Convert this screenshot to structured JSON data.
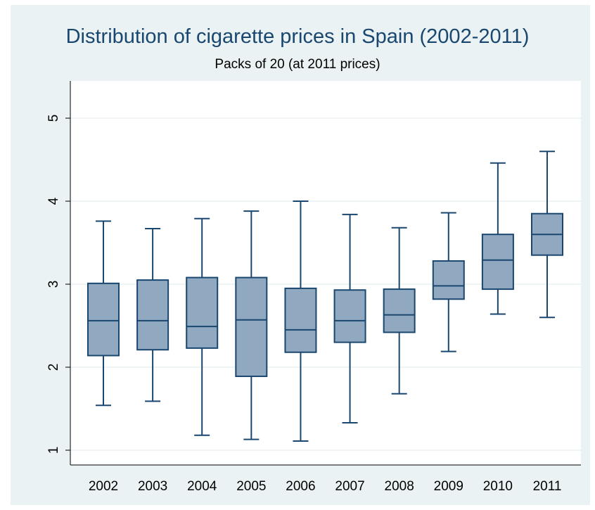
{
  "chart_data": {
    "type": "box",
    "title": "Distribution of cigarette prices in Spain (2002-2011)",
    "subtitle": "Packs of 20 (at 2011 prices)",
    "xlabel": "",
    "ylabel": "",
    "ylim": [
      0.8,
      5.45
    ],
    "yticks": [
      1,
      2,
      3,
      4,
      5
    ],
    "grid": true,
    "categories": [
      "2002",
      "2003",
      "2004",
      "2005",
      "2006",
      "2007",
      "2008",
      "2009",
      "2010",
      "2011"
    ],
    "boxes": [
      {
        "min": 1.54,
        "q1": 2.14,
        "median": 2.56,
        "q3": 3.01,
        "max": 3.76
      },
      {
        "min": 1.59,
        "q1": 2.21,
        "median": 2.56,
        "q3": 3.05,
        "max": 3.67
      },
      {
        "min": 1.18,
        "q1": 2.23,
        "median": 2.49,
        "q3": 3.08,
        "max": 3.79
      },
      {
        "min": 1.13,
        "q1": 1.89,
        "median": 2.57,
        "q3": 3.08,
        "max": 3.88
      },
      {
        "min": 1.11,
        "q1": 2.18,
        "median": 2.45,
        "q3": 2.95,
        "max": 4.0
      },
      {
        "min": 1.33,
        "q1": 2.3,
        "median": 2.56,
        "q3": 2.93,
        "max": 3.84
      },
      {
        "min": 1.68,
        "q1": 2.42,
        "median": 2.63,
        "q3": 2.94,
        "max": 3.68
      },
      {
        "min": 2.19,
        "q1": 2.82,
        "median": 2.98,
        "q3": 3.28,
        "max": 3.86
      },
      {
        "min": 2.64,
        "q1": 2.94,
        "median": 3.29,
        "q3": 3.6,
        "max": 4.46
      },
      {
        "min": 2.6,
        "q1": 3.35,
        "median": 3.6,
        "q3": 3.85,
        "max": 4.6
      }
    ]
  },
  "colors": {
    "box_fill": "#90a8c0",
    "box_stroke": "#1a476f",
    "background": "#eaf2f3",
    "plot_background": "#ffffff",
    "grid": "#eaf2f3",
    "title": "#1a476f"
  }
}
